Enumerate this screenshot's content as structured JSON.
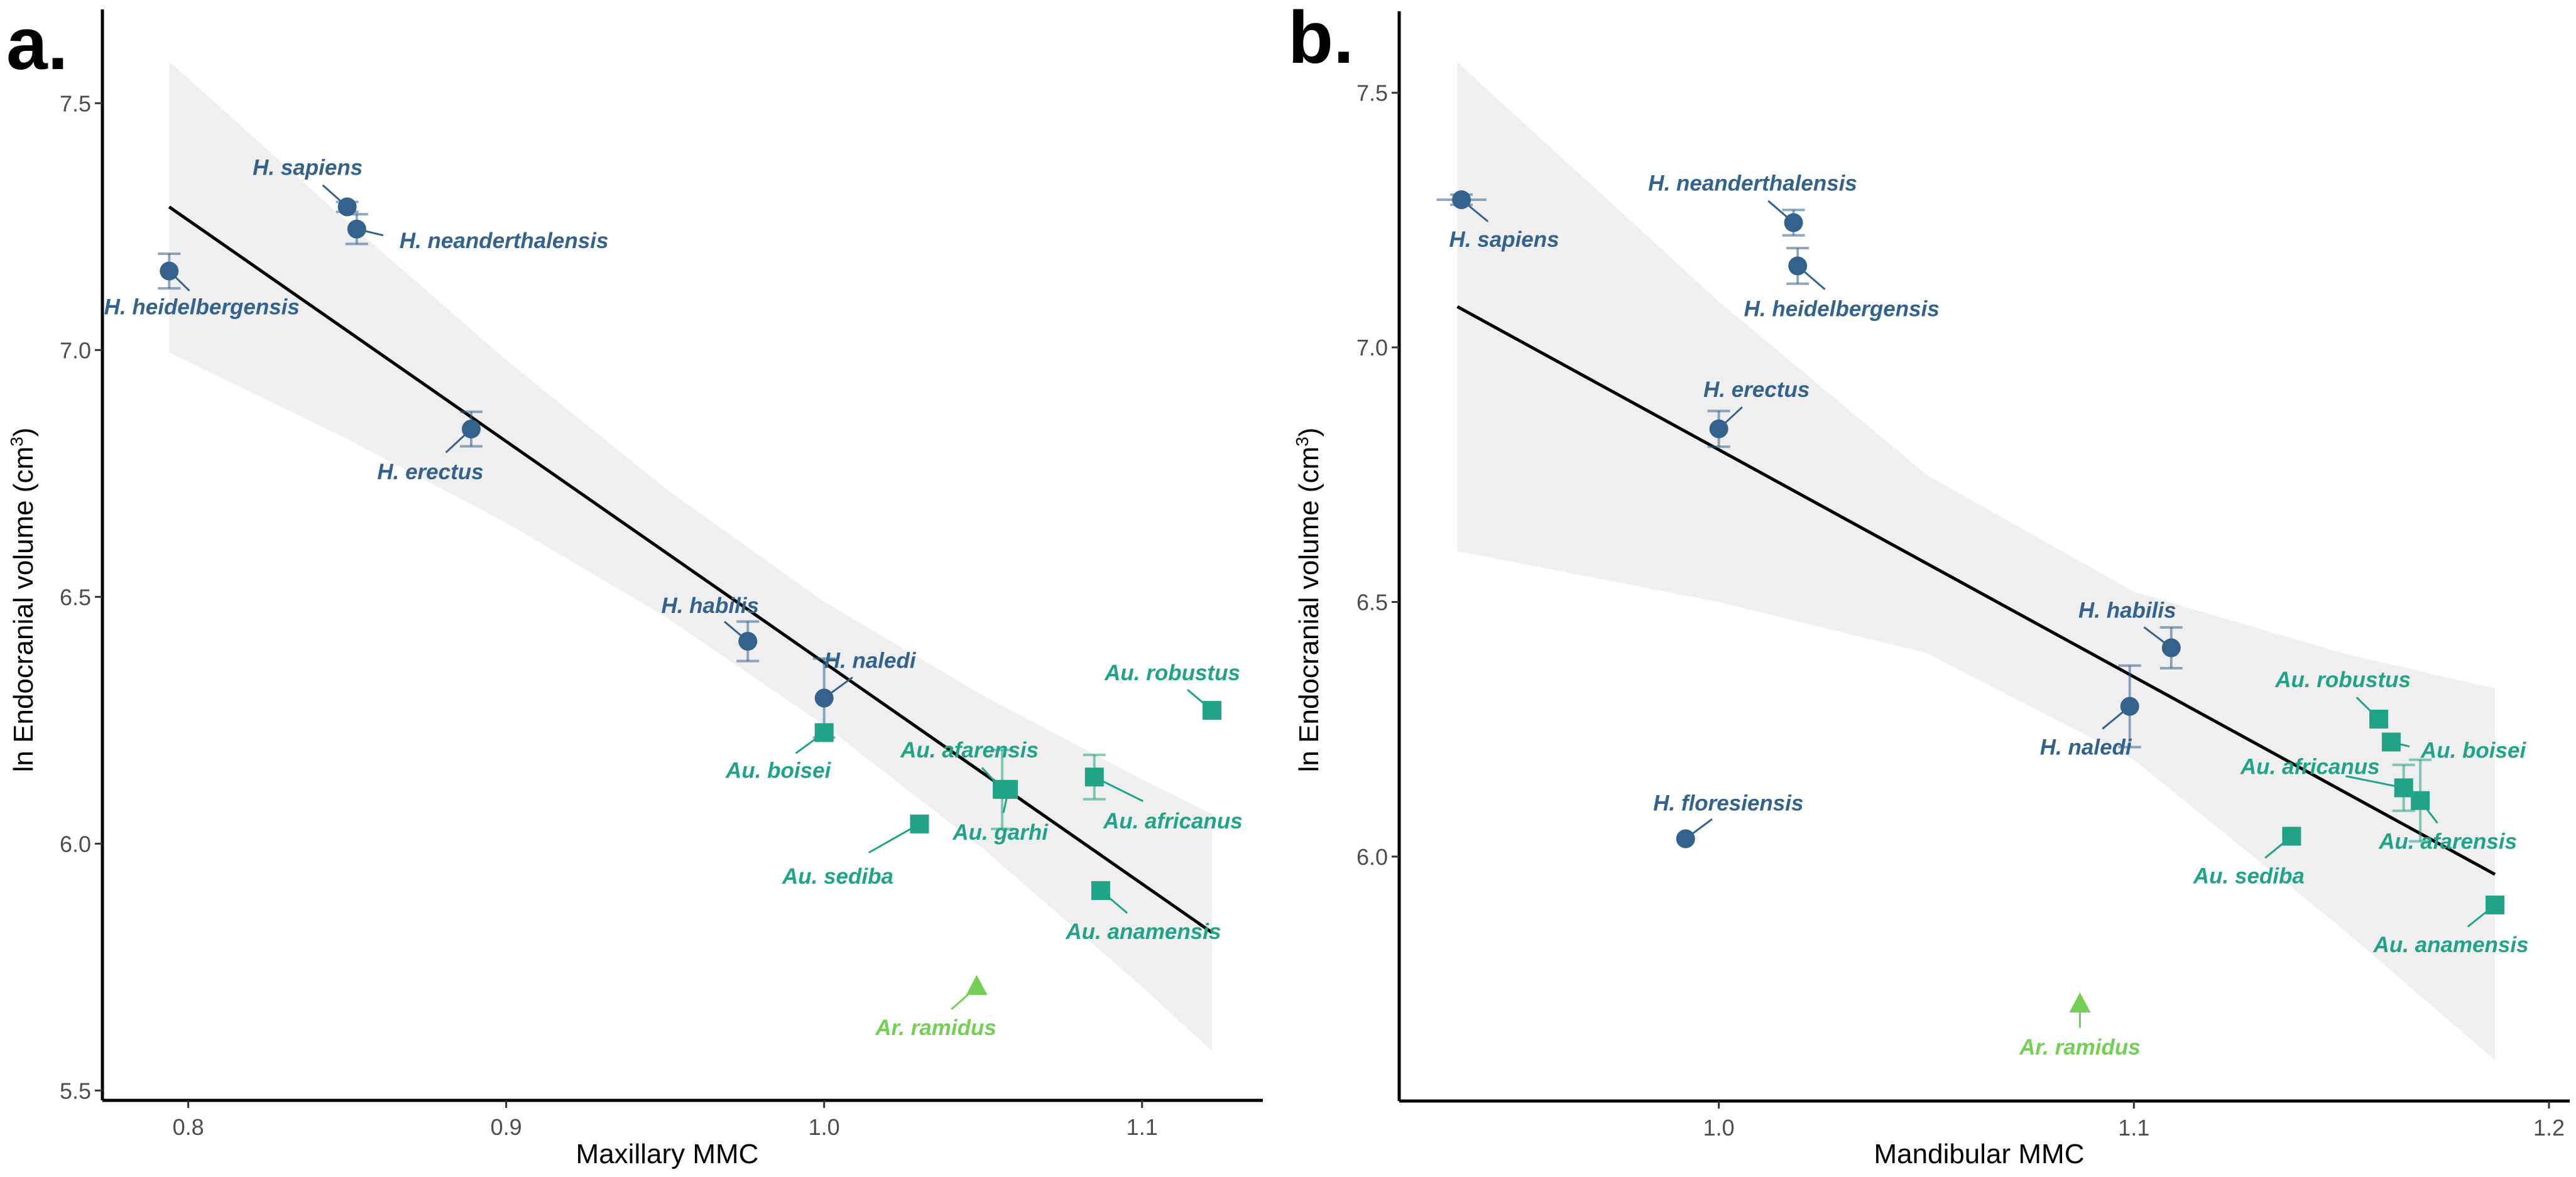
{
  "chart_data": [
    {
      "type": "scatter",
      "panel_label": "a.",
      "xlabel": "Maxillary MMC",
      "ylabel": "ln Endocranial volume (cm",
      "ylabel_sup": "3",
      "ylabel_close": ")",
      "xlim": [
        0.773,
        1.138
      ],
      "ylim": [
        5.48,
        7.69
      ],
      "xticks": [
        "0.8",
        "0.9",
        "1.0",
        "1.1"
      ],
      "yticks": [
        "5.5",
        "6.0",
        "6.5",
        "7.0",
        "7.5"
      ],
      "grid": false,
      "colors": {
        "Homo": "#33638d",
        "Australopithecus": "#20a387",
        "Ardipithecus": "#73d055",
        "ribbon": "#efefef",
        "fit": "#000000"
      },
      "fit_line": {
        "x": [
          0.794,
          1.122
        ],
        "y": [
          7.29,
          5.82
        ]
      },
      "ribbon": {
        "x": [
          0.794,
          0.85,
          0.9,
          0.95,
          1.0,
          1.05,
          1.1,
          1.122
        ],
        "lower": [
          6.995,
          6.82,
          6.65,
          6.46,
          6.24,
          5.99,
          5.71,
          5.58
        ],
        "upper": [
          7.585,
          7.26,
          6.98,
          6.72,
          6.49,
          6.3,
          6.13,
          6.06
        ]
      },
      "points": [
        {
          "label": "H. heidelbergensis",
          "genus": "Homo",
          "x": 0.794,
          "y": 7.16,
          "err": 0.035
        },
        {
          "label": "H. sapiens",
          "genus": "Homo",
          "x": 0.85,
          "y": 7.29,
          "err": 0.01
        },
        {
          "label": "H. neanderthalensis",
          "genus": "Homo",
          "x": 0.853,
          "y": 7.245,
          "err": 0.03
        },
        {
          "label": "H. erectus",
          "genus": "Homo",
          "x": 0.889,
          "y": 6.84,
          "err": 0.035
        },
        {
          "label": "H. habilis",
          "genus": "Homo",
          "x": 0.976,
          "y": 6.41,
          "err": 0.04
        },
        {
          "label": "H. naledi",
          "genus": "Homo",
          "x": 1.0,
          "y": 6.295,
          "err": 0.08
        },
        {
          "label": "Au. boisei",
          "genus": "Australopithecus",
          "x": 1.0,
          "y": 6.225,
          "err": 0
        },
        {
          "label": "Au. afarensis",
          "genus": "Australopithecus",
          "x": 1.056,
          "y": 6.11,
          "err": 0.08
        },
        {
          "label": "Au. garhi",
          "genus": "Australopithecus",
          "x": 1.058,
          "y": 6.11,
          "err": 0
        },
        {
          "label": "Au. africanus",
          "genus": "Australopithecus",
          "x": 1.085,
          "y": 6.135,
          "err": 0.045
        },
        {
          "label": "Au. robustus",
          "genus": "Australopithecus",
          "x": 1.122,
          "y": 6.27,
          "err": 0
        },
        {
          "label": "Au. sediba",
          "genus": "Australopithecus",
          "x": 1.03,
          "y": 6.04,
          "err": 0
        },
        {
          "label": "Au. anamensis",
          "genus": "Australopithecus",
          "x": 1.087,
          "y": 5.905,
          "err": 0
        },
        {
          "label": "Ar. ramidus",
          "genus": "Ardipithecus",
          "x": 1.048,
          "y": 5.71,
          "err": 0
        }
      ]
    },
    {
      "type": "scatter",
      "panel_label": "b.",
      "xlabel": "Mandibular MMC",
      "ylabel": "ln Endocranial volume (cm",
      "ylabel_sup": "3",
      "ylabel_close": ")",
      "xlim": [
        0.923,
        1.205
      ],
      "ylim": [
        5.52,
        7.66
      ],
      "xticks": [
        "1.0",
        "1.1",
        "1.2"
      ],
      "yticks": [
        "6.0",
        "6.5",
        "7.0",
        "7.5"
      ],
      "grid": false,
      "colors": {
        "Homo": "#33638d",
        "Australopithecus": "#20a387",
        "Ardipithecus": "#73d055",
        "ribbon": "#efefef",
        "fit": "#000000"
      },
      "fit_line": {
        "x": [
          0.937,
          1.187
        ],
        "y": [
          7.08,
          5.965
        ]
      },
      "ribbon": {
        "x": [
          0.937,
          1.0,
          1.05,
          1.1,
          1.15,
          1.187
        ],
        "lower": [
          6.6,
          6.5,
          6.4,
          6.19,
          5.86,
          5.6
        ],
        "upper": [
          7.56,
          7.09,
          6.75,
          6.52,
          6.4,
          6.33
        ]
      },
      "points": [
        {
          "label": "H. sapiens",
          "genus": "Homo",
          "x": 0.938,
          "y": 7.29,
          "err": 0.01,
          "xerr": 0.006
        },
        {
          "label": "H. neanderthalensis",
          "genus": "Homo",
          "x": 1.018,
          "y": 7.245,
          "err": 0.025
        },
        {
          "label": "H. heidelbergensis",
          "genus": "Homo",
          "x": 1.019,
          "y": 7.16,
          "err": 0.035
        },
        {
          "label": "H. erectus",
          "genus": "Homo",
          "x": 1.0,
          "y": 6.84,
          "err": 0.035
        },
        {
          "label": "H. habilis",
          "genus": "Homo",
          "x": 1.109,
          "y": 6.41,
          "err": 0.04
        },
        {
          "label": "H. naledi",
          "genus": "Homo",
          "x": 1.099,
          "y": 6.295,
          "err": 0.08
        },
        {
          "label": "Au. robustus",
          "genus": "Australopithecus",
          "x": 1.159,
          "y": 6.27,
          "err": 0
        },
        {
          "label": "Au. boisei",
          "genus": "Australopithecus",
          "x": 1.162,
          "y": 6.225,
          "err": 0
        },
        {
          "label": "Au. africanus",
          "genus": "Australopithecus",
          "x": 1.165,
          "y": 6.135,
          "err": 0.045
        },
        {
          "label": "Au. afarensis",
          "genus": "Australopithecus",
          "x": 1.169,
          "y": 6.11,
          "err": 0.08
        },
        {
          "label": "Au. sediba",
          "genus": "Australopithecus",
          "x": 1.138,
          "y": 6.04,
          "err": 0
        },
        {
          "label": "H. floresiensis",
          "genus": "Homo",
          "x": 0.992,
          "y": 6.035,
          "err": 0
        },
        {
          "label": "Au. anamensis",
          "genus": "Australopithecus",
          "x": 1.187,
          "y": 5.905,
          "err": 0
        },
        {
          "label": "Ar. ramidus",
          "genus": "Ardipithecus",
          "x": 1.087,
          "y": 5.71,
          "err": 0
        }
      ]
    }
  ]
}
